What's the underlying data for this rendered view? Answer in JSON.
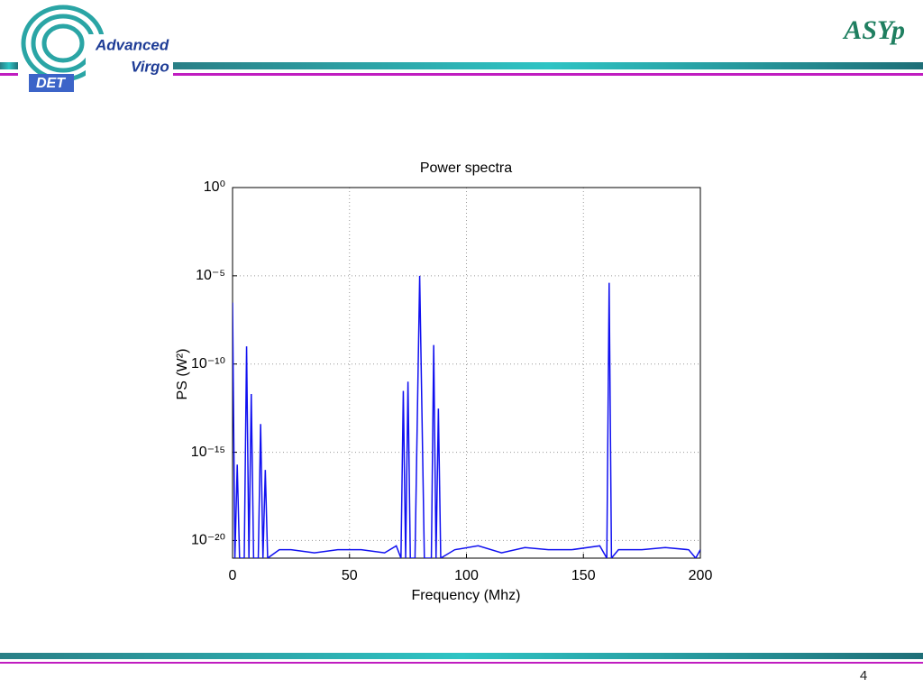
{
  "header": {
    "title": "ASYp",
    "logo": {
      "line1": "Advanced",
      "line2": "Virgo",
      "badge": "DET"
    }
  },
  "footer": {
    "page_number": "4"
  },
  "chart_data": {
    "type": "line",
    "title": "Power spectra",
    "x_label": "Frequency (Mhz)",
    "y_label": "PS (W²)",
    "color": "#1010f0",
    "yscale": "log",
    "grid": true,
    "xlim": [
      0,
      200
    ],
    "xticks": [
      0,
      50,
      100,
      150,
      200
    ],
    "ylim": [
      1e-21,
      1
    ],
    "yticks": [
      {
        "value": 1,
        "label": "10⁰"
      },
      {
        "value": 1e-05,
        "label": "10⁻⁵"
      },
      {
        "value": 1e-10,
        "label": "10⁻¹⁰"
      },
      {
        "value": 1e-15,
        "label": "10⁻¹⁵"
      },
      {
        "value": 1e-20,
        "label": "10⁻²⁰"
      }
    ],
    "x": [
      0,
      1,
      2,
      3,
      5,
      6,
      7,
      8,
      9,
      11,
      12,
      13,
      14,
      15,
      20,
      25,
      35,
      45,
      55,
      65,
      70,
      72,
      73,
      74,
      75,
      76,
      78,
      80,
      82,
      85,
      86,
      87,
      88,
      89,
      95,
      105,
      115,
      125,
      135,
      145,
      157,
      160,
      161,
      162,
      165,
      175,
      185,
      195,
      198,
      200
    ],
    "values": [
      3e-07,
      1e-21,
      2e-16,
      1e-21,
      1e-21,
      1e-09,
      1e-21,
      2e-12,
      1e-21,
      1e-21,
      4e-14,
      1e-21,
      1e-16,
      1e-21,
      3e-21,
      3e-21,
      2e-21,
      3e-21,
      3e-21,
      2e-21,
      5e-21,
      1e-21,
      3e-12,
      1e-21,
      1e-11,
      1e-21,
      1e-21,
      1e-05,
      1e-21,
      1e-21,
      1.2e-09,
      1e-21,
      3e-13,
      1e-21,
      3e-21,
      5e-21,
      2e-21,
      4e-21,
      3e-21,
      3e-21,
      5e-21,
      1e-21,
      4e-06,
      1e-21,
      3e-21,
      3e-21,
      4e-21,
      3e-21,
      1e-21,
      3e-21
    ]
  }
}
